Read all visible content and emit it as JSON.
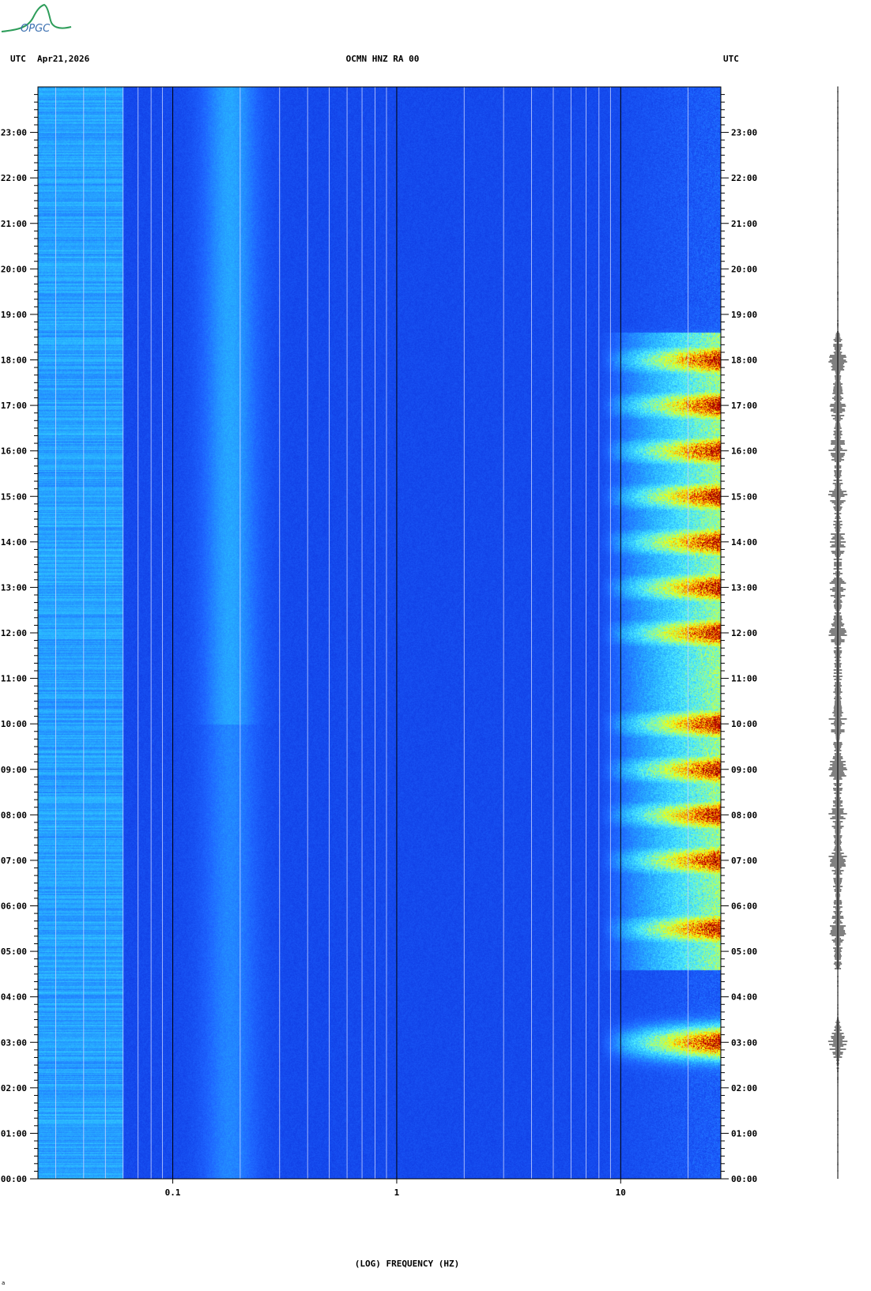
{
  "header": {
    "left_tz": "UTC",
    "date": "Apr21,2026",
    "title": "OCMN HNZ RA 00",
    "right_tz": "UTC"
  },
  "logo": {
    "text": "OPGC"
  },
  "chart_data": {
    "type": "heatmap",
    "title": "OCMN HNZ RA 00",
    "xlabel": "(LOG) FREQUENCY (HZ)",
    "x_scale": "log",
    "xlim": [
      0.025,
      28
    ],
    "x_ticks": [
      {
        "value": 0.1,
        "label": "0.1"
      },
      {
        "value": 1,
        "label": "1"
      },
      {
        "value": 10,
        "label": "10"
      }
    ],
    "y_ticks": [
      "00:00",
      "01:00",
      "02:00",
      "03:00",
      "04:00",
      "05:00",
      "06:00",
      "07:00",
      "08:00",
      "09:00",
      "10:00",
      "11:00",
      "12:00",
      "13:00",
      "14:00",
      "15:00",
      "16:00",
      "17:00",
      "18:00",
      "19:00",
      "20:00",
      "21:00",
      "22:00",
      "23:00"
    ],
    "ylim_hours": [
      0,
      24
    ],
    "colormap": [
      "#0000a0",
      "#0a2cd8",
      "#1e64ff",
      "#28b4ff",
      "#50f0ff",
      "#b4ff64",
      "#ffff00",
      "#ff8000",
      "#c80000",
      "#8c0000"
    ],
    "grid": true,
    "activity_bursts_utc": [
      "03:00",
      "05:30",
      "07:00",
      "08:00",
      "09:00",
      "10:00",
      "12:00",
      "13:00",
      "14:00",
      "15:00",
      "16:00",
      "17:00",
      "18:00"
    ]
  },
  "footnote": "a"
}
